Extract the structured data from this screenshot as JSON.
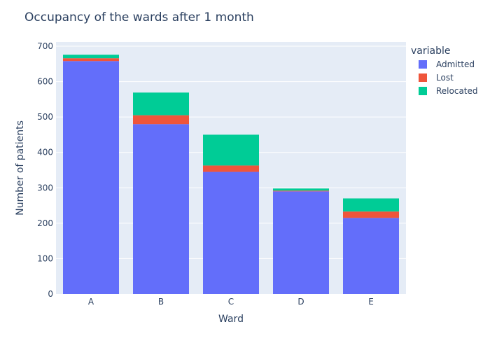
{
  "chart_data": {
    "type": "bar",
    "stacked": true,
    "title": "Occupancy of the wards after 1 month",
    "xlabel": "Ward",
    "ylabel": "Number of patients",
    "categories": [
      "A",
      "B",
      "C",
      "D",
      "E"
    ],
    "ylim": [
      0,
      700
    ],
    "yticks": [
      0,
      100,
      200,
      300,
      400,
      500,
      600,
      700
    ],
    "grid": true,
    "legend": {
      "title": "variable",
      "position": "top-right"
    },
    "series": [
      {
        "name": "Admitted",
        "color": "#636efa",
        "values": [
          658,
          480,
          345,
          290,
          215
        ]
      },
      {
        "name": "Lost",
        "color": "#ef553b",
        "values": [
          8,
          25,
          18,
          2,
          18
        ]
      },
      {
        "name": "Relocated",
        "color": "#00cc96",
        "values": [
          10,
          64,
          87,
          6,
          37
        ]
      }
    ]
  }
}
